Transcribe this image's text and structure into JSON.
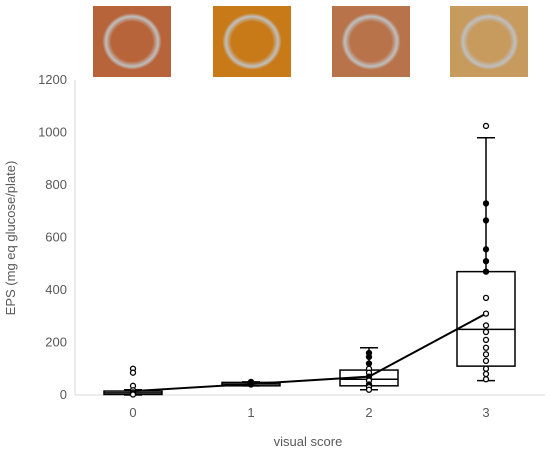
{
  "chart_data": {
    "type": "box",
    "xlabel": "visual score",
    "ylabel": "EPS (mg eq glucose/plate)",
    "ylim": [
      0,
      1200
    ],
    "yticks": [
      0,
      200,
      400,
      600,
      800,
      1000,
      1200
    ],
    "categories": [
      "0",
      "1",
      "2",
      "3"
    ],
    "boxes": [
      {
        "category": "0",
        "whisker_low": 0,
        "q1": 2,
        "median": 8,
        "q3": 15,
        "whisker_high": 20
      },
      {
        "category": "1",
        "whisker_low": 35,
        "q1": 35,
        "median": 42,
        "q3": 48,
        "whisker_high": 50
      },
      {
        "category": "2",
        "whisker_low": 20,
        "q1": 35,
        "median": 60,
        "q3": 95,
        "whisker_high": 180
      },
      {
        "category": "3",
        "whisker_low": 55,
        "q1": 110,
        "median": 250,
        "q3": 470,
        "whisker_high": 980
      }
    ],
    "mean_line": {
      "x": [
        "0",
        "1",
        "2",
        "3"
      ],
      "y": [
        15,
        42,
        70,
        310
      ]
    },
    "points": [
      {
        "category": "0",
        "values": [
          100,
          85,
          35,
          18,
          10,
          5,
          2
        ],
        "filled": [
          false,
          false,
          false,
          false,
          false,
          false,
          false
        ]
      },
      {
        "category": "1",
        "values": [
          50,
          45,
          40
        ],
        "filled": [
          true,
          true,
          true
        ]
      },
      {
        "category": "2",
        "values": [
          160,
          145,
          120,
          100,
          85,
          70,
          55,
          40,
          30,
          20
        ],
        "filled": [
          true,
          true,
          true,
          false,
          false,
          true,
          false,
          true,
          false,
          false
        ]
      },
      {
        "category": "3",
        "values": [
          1025,
          730,
          665,
          555,
          510,
          470,
          370,
          310,
          265,
          240,
          210,
          180,
          155,
          130,
          100,
          80,
          60
        ],
        "filled": [
          false,
          true,
          true,
          true,
          true,
          true,
          false,
          false,
          false,
          false,
          false,
          false,
          false,
          false,
          false,
          false,
          false
        ]
      }
    ],
    "grid": false,
    "legend": "none"
  },
  "colors": {
    "axis": "#d9d9d9",
    "text": "#595959",
    "plot": "#000000",
    "photo_0": "#b8643a",
    "photo_1": "#c97a18",
    "photo_2": "#b8734a",
    "photo_3": "#c79a5e"
  }
}
